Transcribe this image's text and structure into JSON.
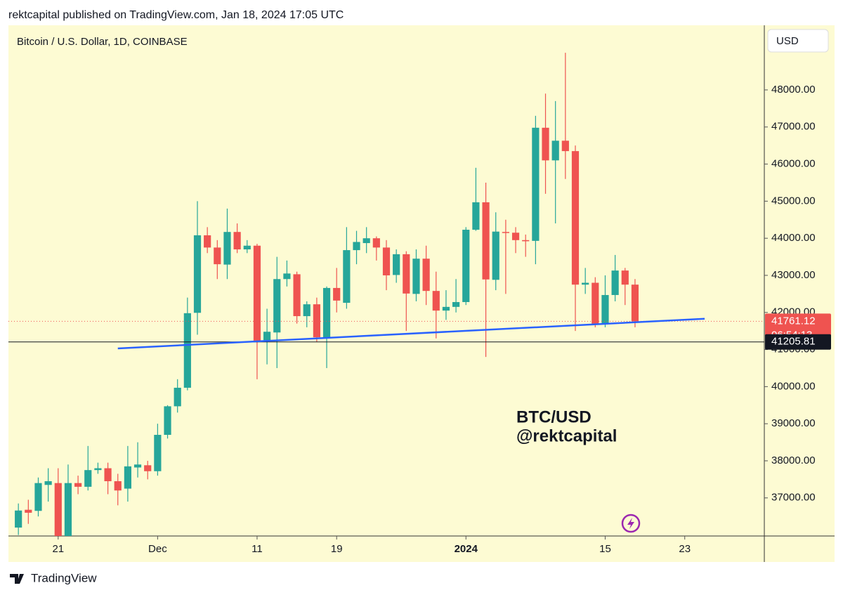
{
  "header": {
    "published": "rektcapital published on TradingView.com, Jan 18, 2024 17:05 UTC"
  },
  "footer": {
    "brand": "TradingView"
  },
  "chart_data": {
    "type": "candlestick",
    "title": "Bitcoin / U.S. Dollar, 1D, COINBASE",
    "currency": "USD",
    "annotations": [
      "BTC/USD",
      "@rektcapital"
    ],
    "up_color": "#26a69a",
    "down_color": "#ef5350",
    "x": [
      "2023-11-17",
      "2023-11-18",
      "2023-11-19",
      "2023-11-20",
      "2023-11-21",
      "2023-11-22",
      "2023-11-23",
      "2023-11-24",
      "2023-11-25",
      "2023-11-26",
      "2023-11-27",
      "2023-11-28",
      "2023-11-29",
      "2023-11-30",
      "2023-12-01",
      "2023-12-02",
      "2023-12-03",
      "2023-12-04",
      "2023-12-05",
      "2023-12-06",
      "2023-12-07",
      "2023-12-08",
      "2023-12-09",
      "2023-12-10",
      "2023-12-11",
      "2023-12-12",
      "2023-12-13",
      "2023-12-14",
      "2023-12-15",
      "2023-12-16",
      "2023-12-17",
      "2023-12-18",
      "2023-12-19",
      "2023-12-20",
      "2023-12-21",
      "2023-12-22",
      "2023-12-23",
      "2023-12-24",
      "2023-12-25",
      "2023-12-26",
      "2023-12-27",
      "2023-12-28",
      "2023-12-29",
      "2023-12-30",
      "2023-12-31",
      "2024-01-01",
      "2024-01-02",
      "2024-01-03",
      "2024-01-04",
      "2024-01-05",
      "2024-01-06",
      "2024-01-07",
      "2024-01-08",
      "2024-01-09",
      "2024-01-10",
      "2024-01-11",
      "2024-01-12",
      "2024-01-13",
      "2024-01-14",
      "2024-01-15",
      "2024-01-16",
      "2024-01-17",
      "2024-01-18"
    ],
    "open": [
      36200,
      36680,
      36650,
      37350,
      37400,
      35800,
      37400,
      37300,
      37750,
      37800,
      37450,
      37250,
      37820,
      37880,
      37720,
      38700,
      39470,
      39970,
      41990,
      44080,
      43750,
      43290,
      44170,
      43700,
      43800,
      41250,
      41460,
      42900,
      43030,
      41900,
      42220,
      41330,
      42660,
      42260,
      43680,
      43870,
      44000,
      43750,
      43010,
      43570,
      42500,
      43450,
      42580,
      42050,
      42150,
      42280,
      44230,
      44970,
      42880,
      44170,
      44150,
      43950,
      43930,
      46980,
      46100,
      46630,
      46350,
      42750,
      42800,
      41700,
      42470,
      43130,
      42750
    ],
    "high": [
      36850,
      36950,
      37550,
      37800,
      37800,
      37900,
      37600,
      38400,
      37950,
      37950,
      37650,
      38400,
      38500,
      38000,
      39000,
      39500,
      40200,
      42400,
      45000,
      44300,
      43950,
      44800,
      44400,
      43950,
      43850,
      42100,
      43500,
      43400,
      43100,
      42300,
      42400,
      42700,
      43200,
      44300,
      44200,
      44300,
      44050,
      43950,
      43700,
      43650,
      43700,
      43800,
      43100,
      42600,
      42900,
      44300,
      45900,
      45500,
      44700,
      44500,
      44300,
      44100,
      47300,
      47900,
      47700,
      49000,
      46500,
      43200,
      42950,
      43000,
      43550,
      43200,
      42900
    ],
    "low": [
      36000,
      36300,
      36500,
      36900,
      35600,
      35700,
      37100,
      37200,
      37650,
      37100,
      36800,
      36900,
      37550,
      37500,
      37600,
      38600,
      39300,
      39900,
      41400,
      43600,
      42900,
      42900,
      43600,
      43600,
      40200,
      40600,
      40500,
      42700,
      41700,
      41600,
      41200,
      40500,
      42000,
      42100,
      43300,
      43600,
      43400,
      42600,
      42800,
      41500,
      42300,
      42200,
      41300,
      41800,
      42000,
      42200,
      44200,
      40800,
      42600,
      42500,
      43600,
      43500,
      43300,
      45200,
      44400,
      45600,
      41500,
      42500,
      41600,
      41600,
      42300,
      42200,
      41600
    ],
    "close": [
      36660,
      36600,
      37400,
      37450,
      35800,
      37400,
      37300,
      37750,
      37800,
      37450,
      37200,
      37850,
      37900,
      37720,
      38700,
      39470,
      39970,
      41980,
      44080,
      43750,
      43300,
      44170,
      43700,
      43800,
      41240,
      41480,
      42900,
      43050,
      41900,
      42220,
      41330,
      42660,
      42320,
      43680,
      43900,
      44000,
      43750,
      43000,
      43570,
      42510,
      43450,
      42580,
      42050,
      42150,
      42280,
      44230,
      44970,
      42890,
      44180,
      44150,
      43950,
      43920,
      46980,
      46100,
      46630,
      46350,
      42750,
      42800,
      41680,
      42470,
      43130,
      42750,
      41761.12
    ],
    "countdown": "06:54:13",
    "hline": 41205.81,
    "trendline": {
      "x": [
        "2023-11-27",
        "2024-01-25"
      ],
      "y": [
        41030,
        41830
      ],
      "color": "#2962ff"
    },
    "xlim": [
      "2023-11-16",
      "2024-01-31"
    ],
    "xticks": [
      {
        "value": "2023-11-21",
        "label": "21"
      },
      {
        "value": "2023-12-01",
        "label": "Dec"
      },
      {
        "value": "2023-12-11",
        "label": "11"
      },
      {
        "value": "2023-12-19",
        "label": "19"
      },
      {
        "value": "2024-01-01",
        "label": "2024"
      },
      {
        "value": "2024-01-15",
        "label": "15"
      },
      {
        "value": "2024-01-23",
        "label": "23"
      }
    ],
    "ylim": [
      35973,
      49742
    ],
    "yticks": [
      {
        "value": 37000,
        "label": "37000.00"
      },
      {
        "value": 38000,
        "label": "38000.00"
      },
      {
        "value": 39000,
        "label": "39000.00"
      },
      {
        "value": 40000,
        "label": "40000.00"
      },
      {
        "value": 41000,
        "label": "41000.00"
      },
      {
        "value": 42000,
        "label": "42000.00"
      },
      {
        "value": 43000,
        "label": "43000.00"
      },
      {
        "value": 44000,
        "label": "44000.00"
      },
      {
        "value": 45000,
        "label": "45000.00"
      },
      {
        "value": 46000,
        "label": "46000.00"
      },
      {
        "value": 47000,
        "label": "47000.00"
      },
      {
        "value": 48000,
        "label": "48000.00"
      }
    ]
  }
}
